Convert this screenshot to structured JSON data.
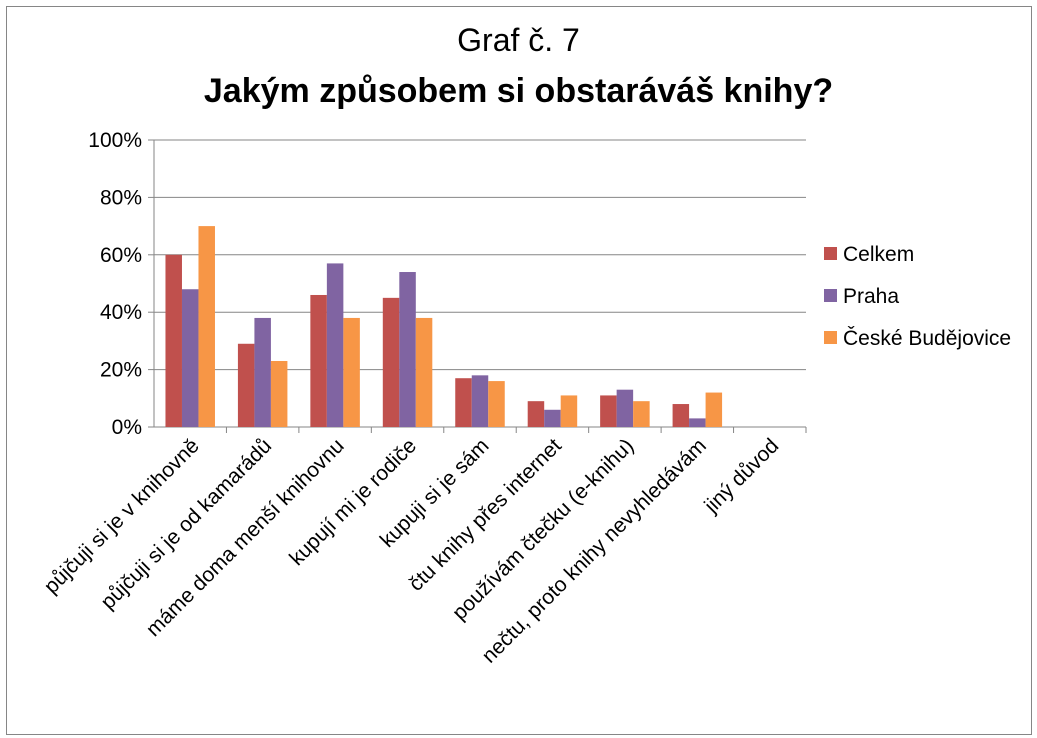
{
  "chart_data": {
    "type": "bar",
    "title": "Jakým způsobem si obstaráváš knihy?",
    "subtitle": "Graf č. 7",
    "xlabel": "",
    "ylabel": "",
    "ylim": [
      0,
      100
    ],
    "y_ticks": [
      "0%",
      "20%",
      "40%",
      "60%",
      "80%",
      "100%"
    ],
    "grid": true,
    "legend_position": "right",
    "categories": [
      "půjčuji si je v knihovně",
      "půjčuji si je od kamarádů",
      "máme doma menší knihovnu",
      "kupují mi je rodiče",
      "kupuji si je sám",
      "čtu knihy přes internet",
      "používám čtečku (e-knihu)",
      "nečtu, proto knihy nevyhledávám",
      "jiný důvod"
    ],
    "series": [
      {
        "name": "Celkem",
        "color": "#c0504d",
        "values": [
          60,
          29,
          46,
          45,
          17,
          9,
          11,
          8,
          0
        ]
      },
      {
        "name": "Praha",
        "color": "#8064a2",
        "values": [
          48,
          38,
          57,
          54,
          18,
          6,
          13,
          3,
          0
        ]
      },
      {
        "name": "České Budějovice",
        "color": "#f79646",
        "values": [
          70,
          23,
          38,
          38,
          16,
          11,
          9,
          12,
          0
        ]
      }
    ]
  }
}
